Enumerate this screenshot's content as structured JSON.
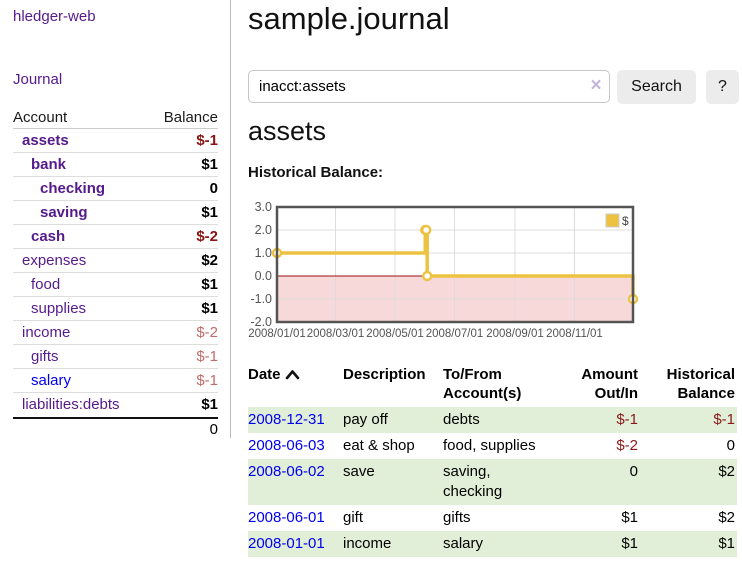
{
  "app": {
    "brand": "hledger-web",
    "nav_journal": "Journal"
  },
  "sidebar": {
    "header": {
      "account": "Account",
      "balance": "Balance"
    },
    "rows": [
      {
        "name": "assets",
        "depth": 1,
        "selected": true,
        "visited": true,
        "balance": "$-1",
        "neg": "strong"
      },
      {
        "name": "bank",
        "depth": 2,
        "selected": true,
        "visited": true,
        "balance": "$1",
        "neg": null
      },
      {
        "name": "checking",
        "depth": 3,
        "selected": true,
        "visited": true,
        "balance": "0",
        "neg": null
      },
      {
        "name": "saving",
        "depth": 3,
        "selected": true,
        "visited": true,
        "balance": "$1",
        "neg": null
      },
      {
        "name": "cash",
        "depth": 2,
        "selected": true,
        "visited": true,
        "balance": "$-2",
        "neg": "strong"
      },
      {
        "name": "expenses",
        "depth": 1,
        "selected": false,
        "visited": true,
        "balance": "$2",
        "neg": null
      },
      {
        "name": "food",
        "depth": 2,
        "selected": false,
        "visited": true,
        "balance": "$1",
        "neg": null
      },
      {
        "name": "supplies",
        "depth": 2,
        "selected": false,
        "visited": true,
        "balance": "$1",
        "neg": null
      },
      {
        "name": "income",
        "depth": 1,
        "selected": false,
        "visited": true,
        "balance": "$-2",
        "neg": "soft"
      },
      {
        "name": "gifts",
        "depth": 2,
        "selected": false,
        "visited": true,
        "balance": "$-1",
        "neg": "soft"
      },
      {
        "name": "salary",
        "depth": 2,
        "selected": false,
        "visited": false,
        "balance": "$-1",
        "neg": "soft"
      },
      {
        "name": "liabilities:debts",
        "depth": 1,
        "selected": false,
        "visited": true,
        "balance": "$1",
        "neg": null
      }
    ],
    "total": "0"
  },
  "main": {
    "title": "sample.journal",
    "search": {
      "value": "inacct:assets",
      "clear_icon": "×",
      "search_label": "Search",
      "help_label": "?"
    },
    "account_heading": "assets",
    "chart_label": "Historical Balance:"
  },
  "chart_data": {
    "type": "line",
    "style": "steps",
    "title": "Historical Balance",
    "xlim": [
      "2008-01-01",
      "2008-12-31"
    ],
    "ylim": [
      -2,
      3
    ],
    "yticks": [
      {
        "v": 3,
        "label": "3.0"
      },
      {
        "v": 2,
        "label": "2.0"
      },
      {
        "v": 1,
        "label": "1.0"
      },
      {
        "v": 0,
        "label": "0.0"
      },
      {
        "v": -1,
        "label": "-1.0"
      },
      {
        "v": -2,
        "label": "-2.0"
      }
    ],
    "xticks": [
      {
        "date": "2008-01-01",
        "label": "2008/01/01"
      },
      {
        "date": "2008-03-01",
        "label": "2008/03/01"
      },
      {
        "date": "2008-05-01",
        "label": "2008/05/01"
      },
      {
        "date": "2008-07-01",
        "label": "2008/07/01"
      },
      {
        "date": "2008-09-01",
        "label": "2008/09/01"
      },
      {
        "date": "2008-11-01",
        "label": "2008/11/01"
      }
    ],
    "series": [
      {
        "name": "$",
        "color": "#edc240",
        "points": [
          [
            "2008-01-01",
            1
          ],
          [
            "2008-06-01",
            2
          ],
          [
            "2008-06-02",
            2
          ],
          [
            "2008-06-03",
            0
          ],
          [
            "2008-12-31",
            -1
          ]
        ]
      }
    ],
    "legend_position": "top-right",
    "grid": true,
    "zero_line_color": "#991111",
    "negative_region_color": "#f8d9d9",
    "border_color": "#545454",
    "grid_color": "#dcdcdc",
    "tick_color": "#545454"
  },
  "register": {
    "headers": [
      {
        "line1": "Date",
        "line2": "",
        "sortable": true,
        "align": "left"
      },
      {
        "line1": "Description",
        "line2": "",
        "sortable": false,
        "align": "left"
      },
      {
        "line1": "To/From",
        "line2": "Account(s)",
        "sortable": false,
        "align": "left"
      },
      {
        "line1": "Amount",
        "line2": "Out/In",
        "sortable": false,
        "align": "right"
      },
      {
        "line1": "Historical",
        "line2": "Balance",
        "sortable": false,
        "align": "right"
      }
    ],
    "rows": [
      {
        "date": "2008-12-31",
        "description": "pay off",
        "accounts": "debts",
        "amount": "$-1",
        "amount_neg": true,
        "balance": "$-1",
        "balance_neg": true,
        "shade": true
      },
      {
        "date": "2008-06-03",
        "description": "eat & shop",
        "accounts": "food, supplies",
        "amount": "$-2",
        "amount_neg": true,
        "balance": "0",
        "balance_neg": false,
        "shade": false
      },
      {
        "date": "2008-06-02",
        "description": "save",
        "accounts": "saving, checking",
        "amount": "0",
        "amount_neg": false,
        "balance": "$2",
        "balance_neg": false,
        "shade": true
      },
      {
        "date": "2008-06-01",
        "description": "gift",
        "accounts": "gifts",
        "amount": "$1",
        "amount_neg": false,
        "balance": "$2",
        "balance_neg": false,
        "shade": false
      },
      {
        "date": "2008-01-01",
        "description": "income",
        "accounts": "salary",
        "amount": "$1",
        "amount_neg": false,
        "balance": "$1",
        "balance_neg": false,
        "shade": true
      }
    ]
  }
}
